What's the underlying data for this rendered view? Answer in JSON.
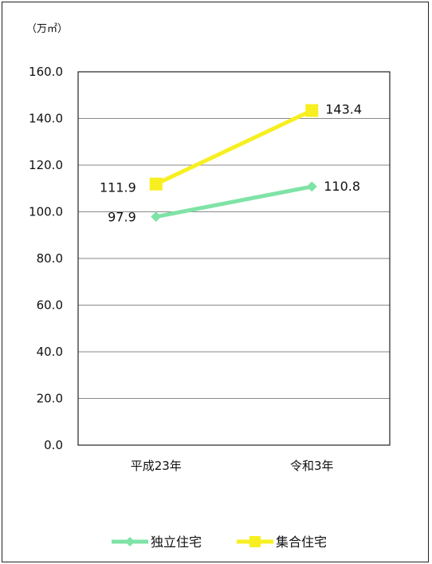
{
  "chart_data": {
    "type": "line",
    "unit_label": "（万㎡）",
    "categories": [
      "平成23年",
      "令和3年"
    ],
    "ylim": [
      0,
      160
    ],
    "yticks": [
      "0.0",
      "20.0",
      "40.0",
      "60.0",
      "80.0",
      "100.0",
      "120.0",
      "140.0",
      "160.0"
    ],
    "grid": true,
    "legend_position": "bottom",
    "series": [
      {
        "name": "独立住宅",
        "values": [
          97.9,
          110.8
        ],
        "labels": [
          "97.9",
          "110.8"
        ],
        "color": "#7fe3a6",
        "marker": "diamond"
      },
      {
        "name": "集合住宅",
        "values": [
          111.9,
          143.4
        ],
        "labels": [
          "111.9",
          "143.4"
        ],
        "color": "#f7ef1f",
        "marker": "square"
      }
    ]
  }
}
